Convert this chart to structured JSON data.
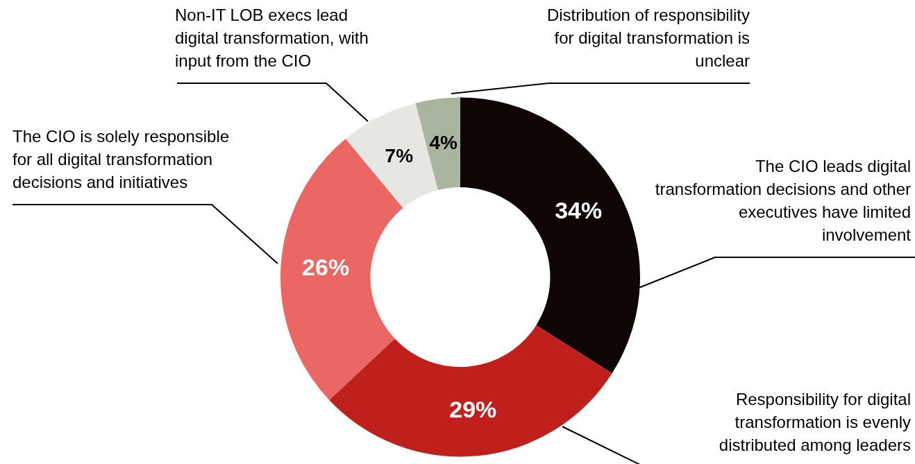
{
  "chart_data": {
    "type": "donut",
    "categories": [
      "The CIO leads digital transformation decisions and other executives have limited involvement",
      "Responsibility for digital transformation is evenly distributed among leaders",
      "The CIO is solely responsible for all digital transformation decisions and initiatives",
      "Non-IT LOB execs lead digital transformation, with input from the CIO",
      "Distribution of responsibility for digital transformation is unclear"
    ],
    "values": [
      34,
      29,
      26,
      7,
      4
    ],
    "colors": [
      "#0f0505",
      "#c0201c",
      "#ea6763",
      "#e6e6e2",
      "#a9b59f"
    ],
    "value_labels": [
      "34%",
      "29%",
      "26%",
      "7%",
      "4%"
    ],
    "legend": false
  }
}
